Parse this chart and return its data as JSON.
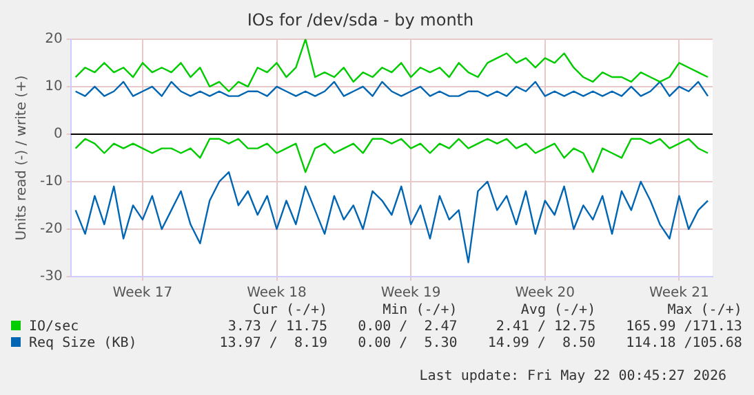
{
  "chart_data": {
    "type": "line",
    "title": "IOs for /dev/sda - by month",
    "ylabel": "Units read (-) / write (+)",
    "categories": [
      null,
      null,
      null,
      null,
      null,
      null,
      null,
      "Week 17",
      null,
      null,
      null,
      null,
      null,
      null,
      null,
      null,
      null,
      null,
      null,
      null,
      null,
      "Week 18",
      null,
      null,
      null,
      null,
      null,
      null,
      null,
      null,
      null,
      null,
      null,
      null,
      null,
      "Week 19",
      null,
      null,
      null,
      null,
      null,
      null,
      null,
      null,
      null,
      null,
      null,
      null,
      null,
      "Week 20",
      null,
      null,
      null,
      null,
      null,
      null,
      null,
      null,
      null,
      null,
      null,
      null,
      null,
      "Week 21",
      null,
      null,
      null
    ],
    "series": [
      {
        "name": "IO/sec",
        "color": "#00cc00",
        "values": [
          12,
          14,
          13,
          15,
          13,
          14,
          12,
          15,
          13,
          14,
          13,
          15,
          12,
          14,
          10,
          11,
          9,
          11,
          10,
          14,
          13,
          15,
          12,
          14,
          20,
          12,
          13,
          12,
          14,
          11,
          13,
          12,
          14,
          13,
          15,
          12,
          14,
          13,
          14,
          12,
          15,
          13,
          12,
          15,
          16,
          17,
          15,
          16,
          14,
          16,
          15,
          17,
          14,
          12,
          11,
          13,
          12,
          12,
          11,
          13,
          12,
          11,
          12,
          15,
          14,
          13,
          12
        ]
      },
      {
        "color": "#00cc00",
        "values": [
          -3,
          -1,
          -2,
          -4,
          -2,
          -3,
          -2,
          -3,
          -4,
          -3,
          -3,
          -4,
          -3,
          -5,
          -1,
          -1,
          -2,
          -1,
          -3,
          -3,
          -2,
          -4,
          -3,
          -2,
          -8,
          -3,
          -2,
          -4,
          -3,
          -2,
          -4,
          -1,
          -1,
          -2,
          -1,
          -3,
          -2,
          -4,
          -2,
          -3,
          -1,
          -3,
          -2,
          -1,
          -2,
          -1,
          -3,
          -2,
          -4,
          -3,
          -2,
          -5,
          -3,
          -4,
          -8,
          -3,
          -4,
          -5,
          -1,
          -1,
          -2,
          -1,
          -3,
          -2,
          -1,
          -3,
          -4
        ]
      },
      {
        "name": "Req Size (KB)",
        "color": "#0066b3",
        "values": [
          9,
          8,
          10,
          8,
          9,
          11,
          8,
          9,
          10,
          8,
          11,
          9,
          8,
          9,
          8,
          9,
          8,
          8,
          9,
          9,
          8,
          10,
          9,
          8,
          9,
          8,
          9,
          11,
          8,
          9,
          10,
          8,
          11,
          9,
          8,
          9,
          10,
          8,
          9,
          8,
          8,
          9,
          9,
          8,
          9,
          8,
          10,
          9,
          11,
          8,
          9,
          8,
          9,
          8,
          9,
          8,
          9,
          8,
          10,
          8,
          9,
          11,
          8,
          10,
          9,
          11,
          8
        ]
      },
      {
        "color": "#0066b3",
        "values": [
          -16,
          -21,
          -13,
          -19,
          -11,
          -22,
          -15,
          -18,
          -13,
          -20,
          -16,
          -12,
          -19,
          -23,
          -14,
          -10,
          -8,
          -15,
          -12,
          -17,
          -13,
          -20,
          -14,
          -19,
          -11,
          -16,
          -21,
          -13,
          -18,
          -15,
          -20,
          -12,
          -14,
          -17,
          -11,
          -19,
          -15,
          -22,
          -13,
          -18,
          -16,
          -27,
          -12,
          -10,
          -16,
          -13,
          -19,
          -12,
          -21,
          -14,
          -17,
          -11,
          -20,
          -15,
          -18,
          -13,
          -21,
          -12,
          -16,
          -10,
          -14,
          -19,
          -22,
          -13,
          -20,
          -16,
          -14
        ]
      }
    ],
    "ylim": [
      -30,
      20
    ],
    "yticks": [
      -30,
      -20,
      -10,
      0,
      10,
      20
    ],
    "ref_lines": [
      {
        "axis": "y",
        "value": 0,
        "color": "#000000"
      }
    ],
    "grid": true,
    "legend": "bottom left",
    "annotations": [
      "Cur (-/+)",
      "Min (-/+)",
      "Avg (-/+)",
      "Max (-/+)",
      "3.73 / 11.75",
      "0.00 /  2.47",
      "2.41 / 12.75",
      "165.99 /171.13",
      "13.97 /  8.19",
      "0.00 /  5.30",
      "14.99 /  8.50",
      "114.18 /105.68",
      "Last update: Fri May 22 00:45:27 2026"
    ]
  }
}
